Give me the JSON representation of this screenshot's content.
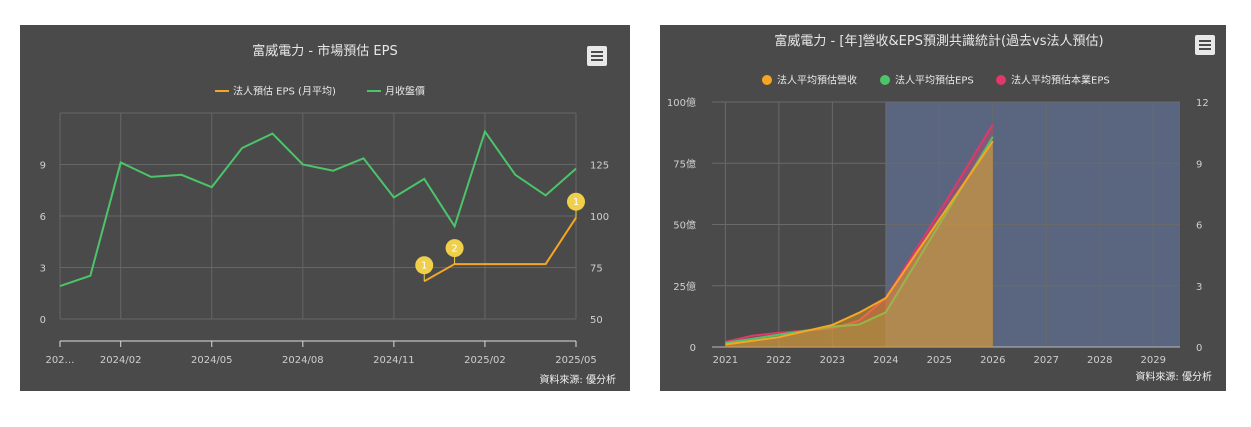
{
  "chart_data": [
    {
      "type": "line",
      "title": "富威電力 - 市場預估 EPS",
      "legend": [
        "法人預估 EPS (月平均)",
        "月收盤價"
      ],
      "legend_position": "top",
      "x_tick_labels": [
        "202…",
        "2024/02",
        "2024/05",
        "2024/08",
        "2024/11",
        "2025/02",
        "2025/05"
      ],
      "y_left": {
        "ticks": [
          "0",
          "3",
          "6",
          "9"
        ],
        "range": [
          0,
          12
        ]
      },
      "y_right": {
        "ticks": [
          "50",
          "75",
          "100",
          "125"
        ],
        "range": [
          50,
          150
        ]
      },
      "series": [
        {
          "name": "法人預估 EPS (月平均)",
          "color": "#f5a623",
          "axis": "left",
          "x": [
            "2024/12",
            "2025/01",
            "2025/02",
            "2025/03",
            "2025/04",
            "2025/05"
          ],
          "values": [
            2.2,
            3.2,
            3.2,
            3.2,
            3.2,
            5.9
          ]
        },
        {
          "name": "月收盤價",
          "color": "#4cc46a",
          "axis": "right",
          "x": [
            "2023/12",
            "2024/01",
            "2024/02",
            "2024/03",
            "2024/04",
            "2024/05",
            "2024/06",
            "2024/07",
            "2024/08",
            "2024/09",
            "2024/10",
            "2024/11",
            "2024/12",
            "2025/01",
            "2025/02",
            "2025/03",
            "2025/04",
            "2025/05"
          ],
          "values": [
            66,
            71,
            126,
            119,
            120,
            114,
            133,
            140,
            125,
            122,
            128,
            109,
            118,
            95,
            141,
            120,
            110,
            123
          ]
        }
      ],
      "flags": [
        {
          "label": "1",
          "x": "2024/12",
          "value": 2.2
        },
        {
          "label": "2",
          "x": "2025/01",
          "value": 3.2
        },
        {
          "label": "1",
          "x": "2025/05",
          "value": 5.9
        }
      ],
      "grid": true,
      "source": "資料來源: 優分析",
      "menu_icon": "hamburger-menu-icon"
    },
    {
      "type": "area",
      "title": "富威電力 - [年]營收&EPS預測共識統計(過去vs法人預估)",
      "legend": [
        "法人平均預估營收",
        "法人平均預估EPS",
        "法人平均預估本業EPS"
      ],
      "legend_position": "top",
      "x_tick_labels": [
        "2021",
        "2022",
        "2023",
        "2024",
        "2025",
        "2026",
        "2027",
        "2028",
        "2029"
      ],
      "y_left": {
        "ticks": [
          "0",
          "25億",
          "50億",
          "75億",
          "100億"
        ],
        "range": [
          0,
          100
        ]
      },
      "y_right": {
        "ticks": [
          "0",
          "3",
          "6",
          "9",
          "12"
        ],
        "range": [
          0,
          12
        ]
      },
      "forecast_band": {
        "from": 2024,
        "to": 2029.5,
        "color": "#5a6680"
      },
      "series": [
        {
          "name": "法人平均預估營收",
          "color": "#f5a623",
          "axis": "left",
          "x": [
            2021,
            2022,
            2023,
            2023.5,
            2024,
            2025,
            2026
          ],
          "values": [
            1,
            4,
            9,
            14,
            20,
            52,
            84
          ]
        },
        {
          "name": "法人平均預估EPS",
          "color": "#4cc46a",
          "axis": "right",
          "x": [
            2021,
            2022,
            2023,
            2023.5,
            2024,
            2025,
            2026
          ],
          "values": [
            0.2,
            0.6,
            1.0,
            1.1,
            1.7,
            6.0,
            10.3
          ]
        },
        {
          "name": "法人平均預估本業EPS",
          "color": "#e0386a",
          "axis": "right",
          "x": [
            2021,
            2021.5,
            2022,
            2022.5,
            2023,
            2023.5,
            2024,
            2025,
            2026
          ],
          "values": [
            0.25,
            0.55,
            0.7,
            0.8,
            0.9,
            1.3,
            2.4,
            6.6,
            10.9
          ]
        }
      ],
      "grid": true,
      "source": "資料來源: 優分析",
      "menu_icon": "hamburger-menu-icon"
    }
  ]
}
